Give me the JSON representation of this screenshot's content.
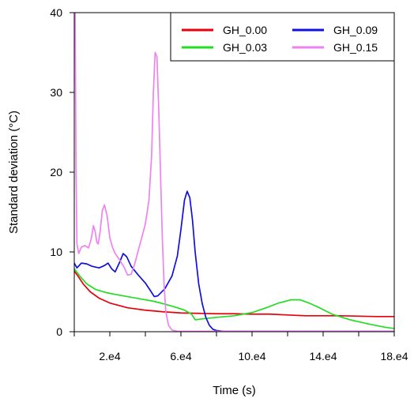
{
  "chart_data": {
    "type": "line",
    "xlabel": "Time (s)",
    "ylabel": "Standard deviation (°C)",
    "xlim": [
      0,
      180000
    ],
    "ylim": [
      0,
      40
    ],
    "x_ticks": [
      {
        "value": 20000,
        "label": "2.e4"
      },
      {
        "value": 60000,
        "label": "6.e4"
      },
      {
        "value": 100000,
        "label": "10.e4"
      },
      {
        "value": 140000,
        "label": "14.e4"
      },
      {
        "value": 180000,
        "label": "18.e4"
      }
    ],
    "y_ticks": [
      {
        "value": 0,
        "label": "0"
      },
      {
        "value": 10,
        "label": "10"
      },
      {
        "value": 20,
        "label": "20"
      },
      {
        "value": 30,
        "label": "30"
      },
      {
        "value": 40,
        "label": "40"
      }
    ],
    "grid": false,
    "legend_position": "top-right",
    "series": [
      {
        "name": "GH_0.00",
        "color": "#e8000b",
        "points": [
          [
            0,
            7.6
          ],
          [
            2000,
            7.0
          ],
          [
            5000,
            6.0
          ],
          [
            9000,
            5.0
          ],
          [
            14000,
            4.2
          ],
          [
            20000,
            3.6
          ],
          [
            30000,
            3.0
          ],
          [
            40000,
            2.7
          ],
          [
            50000,
            2.5
          ],
          [
            60000,
            2.35
          ],
          [
            70000,
            2.3
          ],
          [
            80000,
            2.25
          ],
          [
            90000,
            2.25
          ],
          [
            100000,
            2.2
          ],
          [
            110000,
            2.2
          ],
          [
            120000,
            2.1
          ],
          [
            125000,
            2.05
          ],
          [
            130000,
            2.0
          ],
          [
            140000,
            2.0
          ],
          [
            150000,
            2.0
          ],
          [
            160000,
            1.95
          ],
          [
            170000,
            1.9
          ],
          [
            180000,
            1.9
          ]
        ]
      },
      {
        "name": "GH_0.03",
        "color": "#22dd22",
        "points": [
          [
            0,
            7.9
          ],
          [
            3000,
            7.0
          ],
          [
            7000,
            6.0
          ],
          [
            12000,
            5.3
          ],
          [
            18000,
            4.9
          ],
          [
            25000,
            4.6
          ],
          [
            35000,
            4.2
          ],
          [
            45000,
            3.8
          ],
          [
            52000,
            3.4
          ],
          [
            58000,
            3.0
          ],
          [
            62000,
            2.7
          ],
          [
            66000,
            2.2
          ],
          [
            68000,
            1.5
          ],
          [
            72000,
            1.6
          ],
          [
            80000,
            1.8
          ],
          [
            90000,
            2.0
          ],
          [
            100000,
            2.4
          ],
          [
            108000,
            3.0
          ],
          [
            115000,
            3.6
          ],
          [
            122000,
            4.0
          ],
          [
            127000,
            4.0
          ],
          [
            132000,
            3.6
          ],
          [
            138000,
            3.0
          ],
          [
            145000,
            2.2
          ],
          [
            155000,
            1.5
          ],
          [
            165000,
            1.0
          ],
          [
            175000,
            0.55
          ],
          [
            180000,
            0.4
          ]
        ]
      },
      {
        "name": "GH_0.09",
        "color": "#1010dd",
        "points": [
          [
            0,
            8.6
          ],
          [
            1500,
            8.0
          ],
          [
            4000,
            8.6
          ],
          [
            7000,
            8.5
          ],
          [
            10000,
            8.2
          ],
          [
            14000,
            8.0
          ],
          [
            17000,
            8.3
          ],
          [
            19000,
            8.6
          ],
          [
            21000,
            7.9
          ],
          [
            23000,
            7.5
          ],
          [
            25500,
            8.7
          ],
          [
            27500,
            9.8
          ],
          [
            29500,
            9.4
          ],
          [
            32000,
            8.2
          ],
          [
            36000,
            7.1
          ],
          [
            40000,
            6.1
          ],
          [
            43000,
            5.1
          ],
          [
            45000,
            4.4
          ],
          [
            47000,
            4.5
          ],
          [
            51000,
            5.4
          ],
          [
            55000,
            7.0
          ],
          [
            58000,
            9.5
          ],
          [
            60000,
            12.8
          ],
          [
            62000,
            16.5
          ],
          [
            63500,
            17.6
          ],
          [
            65000,
            16.8
          ],
          [
            66500,
            14.0
          ],
          [
            68000,
            10.0
          ],
          [
            70000,
            6.0
          ],
          [
            72000,
            3.5
          ],
          [
            74000,
            1.8
          ],
          [
            76000,
            0.8
          ],
          [
            78000,
            0.3
          ],
          [
            80000,
            0.15
          ],
          [
            84000,
            0.05
          ],
          [
            180000,
            0.05
          ]
        ]
      },
      {
        "name": "GH_0.15",
        "color": "#ee82ee",
        "points": [
          [
            0,
            40
          ],
          [
            500,
            40
          ],
          [
            1000,
            20
          ],
          [
            1500,
            11
          ],
          [
            2500,
            9.8
          ],
          [
            4000,
            10.6
          ],
          [
            6000,
            10.8
          ],
          [
            8000,
            10.5
          ],
          [
            9500,
            11.6
          ],
          [
            10800,
            13.3
          ],
          [
            11800,
            12.5
          ],
          [
            12700,
            11.2
          ],
          [
            13500,
            11.0
          ],
          [
            14500,
            12.5
          ],
          [
            15800,
            15.2
          ],
          [
            17000,
            15.9
          ],
          [
            18500,
            14.5
          ],
          [
            20000,
            11.8
          ],
          [
            21500,
            10.6
          ],
          [
            23000,
            9.8
          ],
          [
            25500,
            9.0
          ],
          [
            28000,
            8.1
          ],
          [
            30000,
            7.1
          ],
          [
            32000,
            7.2
          ],
          [
            34000,
            8.5
          ],
          [
            37000,
            11.0
          ],
          [
            40000,
            13.5
          ],
          [
            42000,
            16.5
          ],
          [
            43500,
            22.0
          ],
          [
            44500,
            30.0
          ],
          [
            45500,
            35.0
          ],
          [
            46500,
            34.5
          ],
          [
            47500,
            28.0
          ],
          [
            48500,
            20.0
          ],
          [
            49500,
            12.0
          ],
          [
            50500,
            6.0
          ],
          [
            51500,
            2.5
          ],
          [
            53000,
            0.8
          ],
          [
            55000,
            0.2
          ],
          [
            58000,
            0.05
          ],
          [
            180000,
            0.05
          ]
        ]
      }
    ]
  }
}
